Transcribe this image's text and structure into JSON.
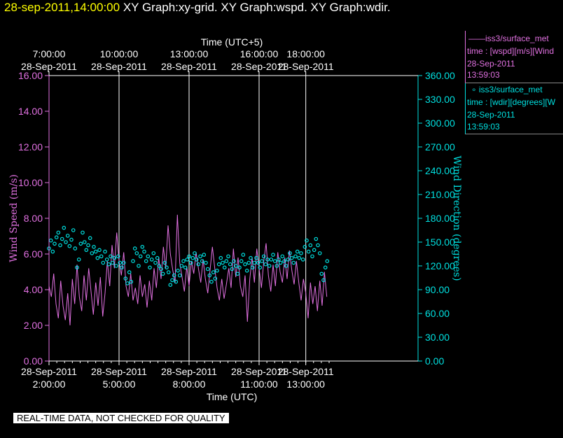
{
  "title": {
    "date": "28-sep-2011,14:00:00",
    "rest": "XY Graph:xy-grid.  XY Graph:wspd.  XY Graph:wdir."
  },
  "legend": {
    "wspd": {
      "name": "——iss3/surface_met",
      "field": "time : [wspd][m/s][Wind",
      "date": "28-Sep-2011",
      "time": "13:59:03"
    },
    "wdir": {
      "name": "∘ iss3/surface_met",
      "field": "time : [wdir][degrees][W",
      "date": "28-Sep-2011",
      "time": "13:59:03"
    }
  },
  "quality_note": "REAL-TIME DATA, NOT CHECKED FOR QUALITY",
  "colors": {
    "wspd": "#e070e0",
    "wdir": "#00e0e0",
    "grid": "#ffffff",
    "background": "#000000"
  },
  "chart_data": {
    "type": "line",
    "x_axis_bottom": {
      "label": "Time (UTC)",
      "unit": "hours UTC on 28-Sep-2011",
      "range": [
        2.0,
        14.3
      ],
      "ticks": [
        {
          "hour": 2,
          "date": "28-Sep-2011",
          "time": "2:00:00"
        },
        {
          "hour": 5,
          "date": "28-Sep-2011",
          "time": "5:00:00"
        },
        {
          "hour": 8,
          "date": "28-Sep-2011",
          "time": "8:00:00"
        },
        {
          "hour": 11,
          "date": "28-Sep-2011",
          "time": "11:00:00"
        },
        {
          "hour": 13,
          "date": "28-Sep-2011",
          "time": "13:00:00"
        }
      ]
    },
    "x_axis_top": {
      "label": "Time (UTC+5)",
      "ticks": [
        {
          "hour": 2,
          "date": "28-Sep-2011",
          "time": "7:00:00"
        },
        {
          "hour": 5,
          "date": "28-Sep-2011",
          "time": "10:00:00"
        },
        {
          "hour": 8,
          "date": "28-Sep-2011",
          "time": "13:00:00"
        },
        {
          "hour": 11,
          "date": "28-Sep-2011",
          "time": "16:00:00"
        },
        {
          "hour": 13,
          "date": "28-Sep-2011",
          "time": "18:00:00"
        }
      ]
    },
    "y_axis_left": {
      "label": "Wind Speed (m/s)",
      "range": [
        0,
        16
      ],
      "ticks": [
        "0.00",
        "2.00",
        "4.00",
        "6.00",
        "8.00",
        "10.00",
        "12.00",
        "14.00",
        "16.00"
      ]
    },
    "y_axis_right": {
      "label": "Wind Direction (degrees)",
      "range": [
        0,
        360
      ],
      "ticks": [
        "0.00",
        "30.00",
        "60.00",
        "90.00",
        "120.00",
        "150.00",
        "180.00",
        "210.00",
        "240.00",
        "270.00",
        "300.00",
        "330.00",
        "360.00"
      ]
    },
    "grid": "vertical lines at bottom-axis ticks",
    "series": [
      {
        "name": "wspd",
        "style": "line",
        "y_axis": "left",
        "points": [
          [
            2.0,
            4.2
          ],
          [
            2.1,
            3.6
          ],
          [
            2.2,
            4.9
          ],
          [
            2.3,
            3.2
          ],
          [
            2.4,
            2.4
          ],
          [
            2.5,
            4.5
          ],
          [
            2.6,
            3.1
          ],
          [
            2.7,
            2.3
          ],
          [
            2.8,
            3.8
          ],
          [
            2.9,
            2.0
          ],
          [
            3.0,
            4.6
          ],
          [
            3.1,
            3.2
          ],
          [
            3.2,
            5.4
          ],
          [
            3.3,
            3.6
          ],
          [
            3.4,
            2.8
          ],
          [
            3.5,
            4.8
          ],
          [
            3.6,
            3.4
          ],
          [
            3.7,
            5.2
          ],
          [
            3.8,
            3.9
          ],
          [
            3.9,
            2.6
          ],
          [
            4.0,
            4.4
          ],
          [
            4.1,
            3.1
          ],
          [
            4.2,
            4.7
          ],
          [
            4.3,
            2.5
          ],
          [
            4.4,
            3.8
          ],
          [
            4.5,
            5.6
          ],
          [
            4.6,
            4.2
          ],
          [
            4.7,
            6.5
          ],
          [
            4.8,
            5.2
          ],
          [
            4.9,
            7.2
          ],
          [
            5.0,
            5.6
          ],
          [
            5.1,
            4.8
          ],
          [
            5.2,
            6.1
          ],
          [
            5.3,
            4.2
          ],
          [
            5.4,
            3.6
          ],
          [
            5.5,
            4.9
          ],
          [
            5.6,
            3.4
          ],
          [
            5.7,
            4.1
          ],
          [
            5.8,
            3.2
          ],
          [
            5.9,
            4.8
          ],
          [
            6.0,
            3.6
          ],
          [
            6.1,
            4.3
          ],
          [
            6.2,
            3.0
          ],
          [
            6.3,
            4.5
          ],
          [
            6.4,
            3.4
          ],
          [
            6.5,
            5.2
          ],
          [
            6.6,
            4.1
          ],
          [
            6.7,
            5.8
          ],
          [
            6.8,
            4.6
          ],
          [
            6.9,
            6.4
          ],
          [
            7.0,
            5.2
          ],
          [
            7.1,
            7.6
          ],
          [
            7.2,
            6.0
          ],
          [
            7.3,
            5.1
          ],
          [
            7.4,
            4.4
          ],
          [
            7.5,
            8.2
          ],
          [
            7.6,
            5.5
          ],
          [
            7.7,
            4.7
          ],
          [
            7.8,
            3.9
          ],
          [
            7.9,
            5.3
          ],
          [
            8.0,
            4.2
          ],
          [
            8.1,
            5.6
          ],
          [
            8.2,
            4.9
          ],
          [
            8.3,
            6.1
          ],
          [
            8.4,
            5.2
          ],
          [
            8.5,
            4.4
          ],
          [
            8.6,
            5.7
          ],
          [
            8.7,
            4.6
          ],
          [
            8.8,
            3.8
          ],
          [
            8.9,
            5.1
          ],
          [
            9.0,
            6.4
          ],
          [
            9.1,
            5.2
          ],
          [
            9.2,
            4.1
          ],
          [
            9.3,
            3.4
          ],
          [
            9.4,
            4.6
          ],
          [
            9.5,
            3.5
          ],
          [
            9.6,
            4.3
          ],
          [
            9.7,
            5.2
          ],
          [
            9.8,
            4.1
          ],
          [
            9.9,
            6.3
          ],
          [
            10.0,
            4.7
          ],
          [
            10.1,
            5.8
          ],
          [
            10.2,
            4.2
          ],
          [
            10.3,
            3.6
          ],
          [
            10.4,
            4.8
          ],
          [
            10.5,
            2.2
          ],
          [
            10.6,
            4.6
          ],
          [
            10.7,
            5.8
          ],
          [
            10.8,
            4.4
          ],
          [
            10.9,
            6.3
          ],
          [
            11.0,
            5.2
          ],
          [
            11.1,
            4.1
          ],
          [
            11.2,
            5.6
          ],
          [
            11.3,
            6.6
          ],
          [
            11.4,
            4.8
          ],
          [
            11.5,
            3.9
          ],
          [
            11.6,
            5.4
          ],
          [
            11.7,
            4.2
          ],
          [
            11.8,
            6.1
          ],
          [
            11.9,
            5.0
          ],
          [
            12.0,
            4.4
          ],
          [
            12.1,
            5.8
          ],
          [
            12.2,
            4.6
          ],
          [
            12.3,
            6.2
          ],
          [
            12.4,
            5.1
          ],
          [
            12.5,
            4.3
          ],
          [
            12.6,
            5.6
          ],
          [
            12.7,
            4.4
          ],
          [
            12.8,
            3.4
          ],
          [
            12.9,
            4.6
          ],
          [
            13.0,
            3.8
          ],
          [
            13.1,
            2.4
          ],
          [
            13.2,
            4.4
          ],
          [
            13.3,
            3.2
          ],
          [
            13.4,
            4.2
          ],
          [
            13.5,
            2.8
          ],
          [
            13.6,
            4.5
          ],
          [
            13.7,
            3.1
          ],
          [
            13.8,
            5.0
          ],
          [
            13.9,
            3.6
          ]
        ]
      },
      {
        "name": "wdir",
        "style": "markers",
        "y_axis": "right",
        "points": [
          [
            2.0,
            142
          ],
          [
            2.08,
            152
          ],
          [
            2.16,
            138
          ],
          [
            2.24,
            148
          ],
          [
            2.32,
            156
          ],
          [
            2.4,
            162
          ],
          [
            2.48,
            146
          ],
          [
            2.56,
            154
          ],
          [
            2.64,
            168
          ],
          [
            2.72,
            150
          ],
          [
            2.8,
            158
          ],
          [
            2.88,
            145
          ],
          [
            2.96,
            153
          ],
          [
            3.04,
            165
          ],
          [
            3.12,
            142
          ],
          [
            3.2,
            118
          ],
          [
            3.28,
            128
          ],
          [
            3.36,
            148
          ],
          [
            3.44,
            162
          ],
          [
            3.52,
            150
          ],
          [
            3.6,
            140
          ],
          [
            3.68,
            146
          ],
          [
            3.76,
            155
          ],
          [
            3.84,
            136
          ],
          [
            3.92,
            144
          ],
          [
            4.0,
            138
          ],
          [
            4.08,
            130
          ],
          [
            4.16,
            140
          ],
          [
            4.24,
            132
          ],
          [
            4.32,
            124
          ],
          [
            4.4,
            138
          ],
          [
            4.48,
            128
          ],
          [
            4.56,
            122
          ],
          [
            4.64,
            132
          ],
          [
            4.72,
            124
          ],
          [
            4.8,
            130
          ],
          [
            4.88,
            120
          ],
          [
            4.96,
            132
          ],
          [
            5.04,
            124
          ],
          [
            5.12,
            118
          ],
          [
            5.2,
            124
          ],
          [
            5.28,
            104
          ],
          [
            5.36,
            98
          ],
          [
            5.44,
            112
          ],
          [
            5.52,
            100
          ],
          [
            5.6,
            126
          ],
          [
            5.68,
            142
          ],
          [
            5.76,
            136
          ],
          [
            5.84,
            120
          ],
          [
            5.92,
            132
          ],
          [
            6.0,
            144
          ],
          [
            6.08,
            138
          ],
          [
            6.16,
            126
          ],
          [
            6.24,
            132
          ],
          [
            6.32,
            118
          ],
          [
            6.4,
            128
          ],
          [
            6.48,
            136
          ],
          [
            6.56,
            124
          ],
          [
            6.64,
            130
          ],
          [
            6.72,
            120
          ],
          [
            6.8,
            116
          ],
          [
            6.88,
            110
          ],
          [
            6.96,
            124
          ],
          [
            7.04,
            118
          ],
          [
            7.12,
            112
          ],
          [
            7.2,
            96
          ],
          [
            7.28,
            102
          ],
          [
            7.36,
            108
          ],
          [
            7.44,
            100
          ],
          [
            7.52,
            114
          ],
          [
            7.6,
            108
          ],
          [
            7.68,
            120
          ],
          [
            7.76,
            126
          ],
          [
            7.84,
            118
          ],
          [
            7.92,
            128
          ],
          [
            8.0,
            132
          ],
          [
            8.08,
            124
          ],
          [
            8.16,
            130
          ],
          [
            8.24,
            136
          ],
          [
            8.32,
            128
          ],
          [
            8.4,
            122
          ],
          [
            8.48,
            132
          ],
          [
            8.56,
            126
          ],
          [
            8.64,
            134
          ],
          [
            8.72,
            124
          ],
          [
            8.8,
            116
          ],
          [
            8.88,
            108
          ],
          [
            8.96,
            100
          ],
          [
            9.04,
            112
          ],
          [
            9.12,
            104
          ],
          [
            9.2,
            114
          ],
          [
            9.28,
            122
          ],
          [
            9.36,
            130
          ],
          [
            9.44,
            124
          ],
          [
            9.52,
            118
          ],
          [
            9.6,
            126
          ],
          [
            9.68,
            132
          ],
          [
            9.76,
            122
          ],
          [
            9.84,
            116
          ],
          [
            9.92,
            126
          ],
          [
            10.0,
            120
          ],
          [
            10.08,
            110
          ],
          [
            10.16,
            118
          ],
          [
            10.24,
            126
          ],
          [
            10.32,
            134
          ],
          [
            10.4,
            122
          ],
          [
            10.48,
            114
          ],
          [
            10.56,
            124
          ],
          [
            10.64,
            130
          ],
          [
            10.72,
            118
          ],
          [
            10.8,
            124
          ],
          [
            10.88,
            130
          ],
          [
            10.96,
            124
          ],
          [
            11.04,
            118
          ],
          [
            11.12,
            126
          ],
          [
            11.2,
            132
          ],
          [
            11.28,
            122
          ],
          [
            11.36,
            128
          ],
          [
            11.44,
            120
          ],
          [
            11.52,
            128
          ],
          [
            11.6,
            134
          ],
          [
            11.68,
            126
          ],
          [
            11.76,
            120
          ],
          [
            11.84,
            128
          ],
          [
            11.92,
            124
          ],
          [
            12.0,
            132
          ],
          [
            12.08,
            126
          ],
          [
            12.16,
            120
          ],
          [
            12.24,
            128
          ],
          [
            12.32,
            136
          ],
          [
            12.4,
            130
          ],
          [
            12.48,
            124
          ],
          [
            12.56,
            132
          ],
          [
            12.64,
            138
          ],
          [
            12.72,
            130
          ],
          [
            12.8,
            136
          ],
          [
            12.88,
            128
          ],
          [
            12.96,
            144
          ],
          [
            13.04,
            152
          ],
          [
            13.12,
            138
          ],
          [
            13.2,
            146
          ],
          [
            13.28,
            132
          ],
          [
            13.36,
            140
          ],
          [
            13.44,
            154
          ],
          [
            13.52,
            146
          ],
          [
            13.6,
            136
          ],
          [
            13.68,
            110
          ],
          [
            13.76,
            102
          ],
          [
            13.84,
            118
          ],
          [
            13.92,
            126
          ]
        ]
      }
    ]
  }
}
